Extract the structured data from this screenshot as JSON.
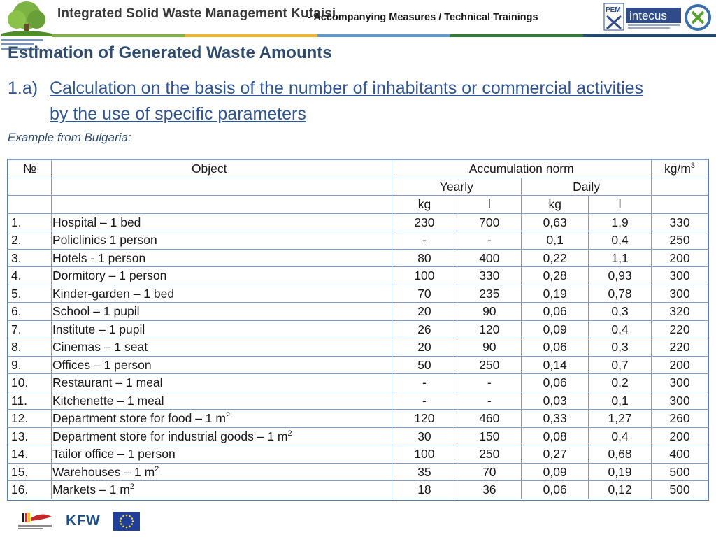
{
  "header": {
    "title": "Integrated Solid Waste Management Kutaisi",
    "subtitle": "- Accompanying Measures / Technical Trainings",
    "partner_logo_text": "intecus",
    "pem_text": "PEM",
    "stripe_colors": [
      "#7fb13b",
      "#f2b51c",
      "#5b9bd5",
      "#2e7d32",
      "#1f4e79"
    ]
  },
  "heading": "Estimation of Generated Waste Amounts",
  "subheading_number": "1.a)",
  "subheading_text": "Calculation on the basis of the number of inhabitants or commercial activities by the use of specific parameters",
  "example_label": "Example from Bulgaria:",
  "table": {
    "col_no": "№",
    "col_object": "Object",
    "col_norm": "Accumulation norm",
    "col_unit": "kg/m",
    "col_unit_sup": "3",
    "yearly": "Yearly",
    "daily": "Daily",
    "unit_kg": "kg",
    "unit_l": "l",
    "rows": [
      {
        "no": "1.",
        "obj": "Hospital – 1 bed",
        "sup": "",
        "ykg": "230",
        "yl": "700",
        "dkg": "0,63",
        "dl": "1,9",
        "density": "330"
      },
      {
        "no": "2.",
        "obj": "Policlinics 1 person",
        "sup": "",
        "ykg": "-",
        "yl": "-",
        "dkg": "0,1",
        "dl": "0,4",
        "density": "250"
      },
      {
        "no": "3.",
        "obj": "Hotels - 1 person",
        "sup": "",
        "ykg": "80",
        "yl": "400",
        "dkg": "0,22",
        "dl": "1,1",
        "density": "200"
      },
      {
        "no": "4.",
        "obj": "Dormitory – 1 person",
        "sup": "",
        "ykg": "100",
        "yl": "330",
        "dkg": "0,28",
        "dl": "0,93",
        "density": "300"
      },
      {
        "no": "5.",
        "obj": "Kinder-garden – 1 bed",
        "sup": "",
        "ykg": "70",
        "yl": "235",
        "dkg": "0,19",
        "dl": "0,78",
        "density": "300"
      },
      {
        "no": "6.",
        "obj": "School – 1 pupil",
        "sup": "",
        "ykg": "20",
        "yl": "90",
        "dkg": "0,06",
        "dl": "0,3",
        "density": "320"
      },
      {
        "no": "7.",
        "obj": "Institute – 1 pupil",
        "sup": "",
        "ykg": "26",
        "yl": "120",
        "dkg": "0,09",
        "dl": "0,4",
        "density": "220"
      },
      {
        "no": "8.",
        "obj": "Cinemas – 1 seat",
        "sup": "",
        "ykg": "20",
        "yl": "90",
        "dkg": "0,06",
        "dl": "0,3",
        "density": "220"
      },
      {
        "no": "9.",
        "obj": "Offices – 1 person",
        "sup": "",
        "ykg": "50",
        "yl": "250",
        "dkg": "0,14",
        "dl": "0,7",
        "density": "200"
      },
      {
        "no": "10.",
        "obj": "Restaurant – 1 meal",
        "sup": "",
        "ykg": "-",
        "yl": "-",
        "dkg": "0,06",
        "dl": "0,2",
        "density": "300"
      },
      {
        "no": "11.",
        "obj": "Kitchenette – 1 meal",
        "sup": "",
        "ykg": "-",
        "yl": "-",
        "dkg": "0,03",
        "dl": "0,1",
        "density": "300"
      },
      {
        "no": "12.",
        "obj": "Department store for food  – 1 m",
        "sup": "2",
        "ykg": "120",
        "yl": "460",
        "dkg": "0,33",
        "dl": "1,27",
        "density": "260"
      },
      {
        "no": "13.",
        "obj": "Department store  for industrial goods – 1 m",
        "sup": "2",
        "ykg": "30",
        "yl": "150",
        "dkg": "0,08",
        "dl": "0,4",
        "density": "200"
      },
      {
        "no": "14.",
        "obj": "Tailor office – 1 person",
        "sup": "",
        "ykg": "100",
        "yl": "250",
        "dkg": "0,27",
        "dl": "0,68",
        "density": "400"
      },
      {
        "no": "15.",
        "obj": "Warehouses – 1 m",
        "sup": "2",
        "ykg": "35",
        "yl": "70",
        "dkg": "0,09",
        "dl": "0,19",
        "density": "500"
      },
      {
        "no": "16.",
        "obj": "Markets – 1 m",
        "sup": "2",
        "ykg": "18",
        "yl": "36",
        "dkg": "0,06",
        "dl": "0,12",
        "density": "500"
      }
    ]
  },
  "footer": {
    "kfw": "KFW"
  }
}
